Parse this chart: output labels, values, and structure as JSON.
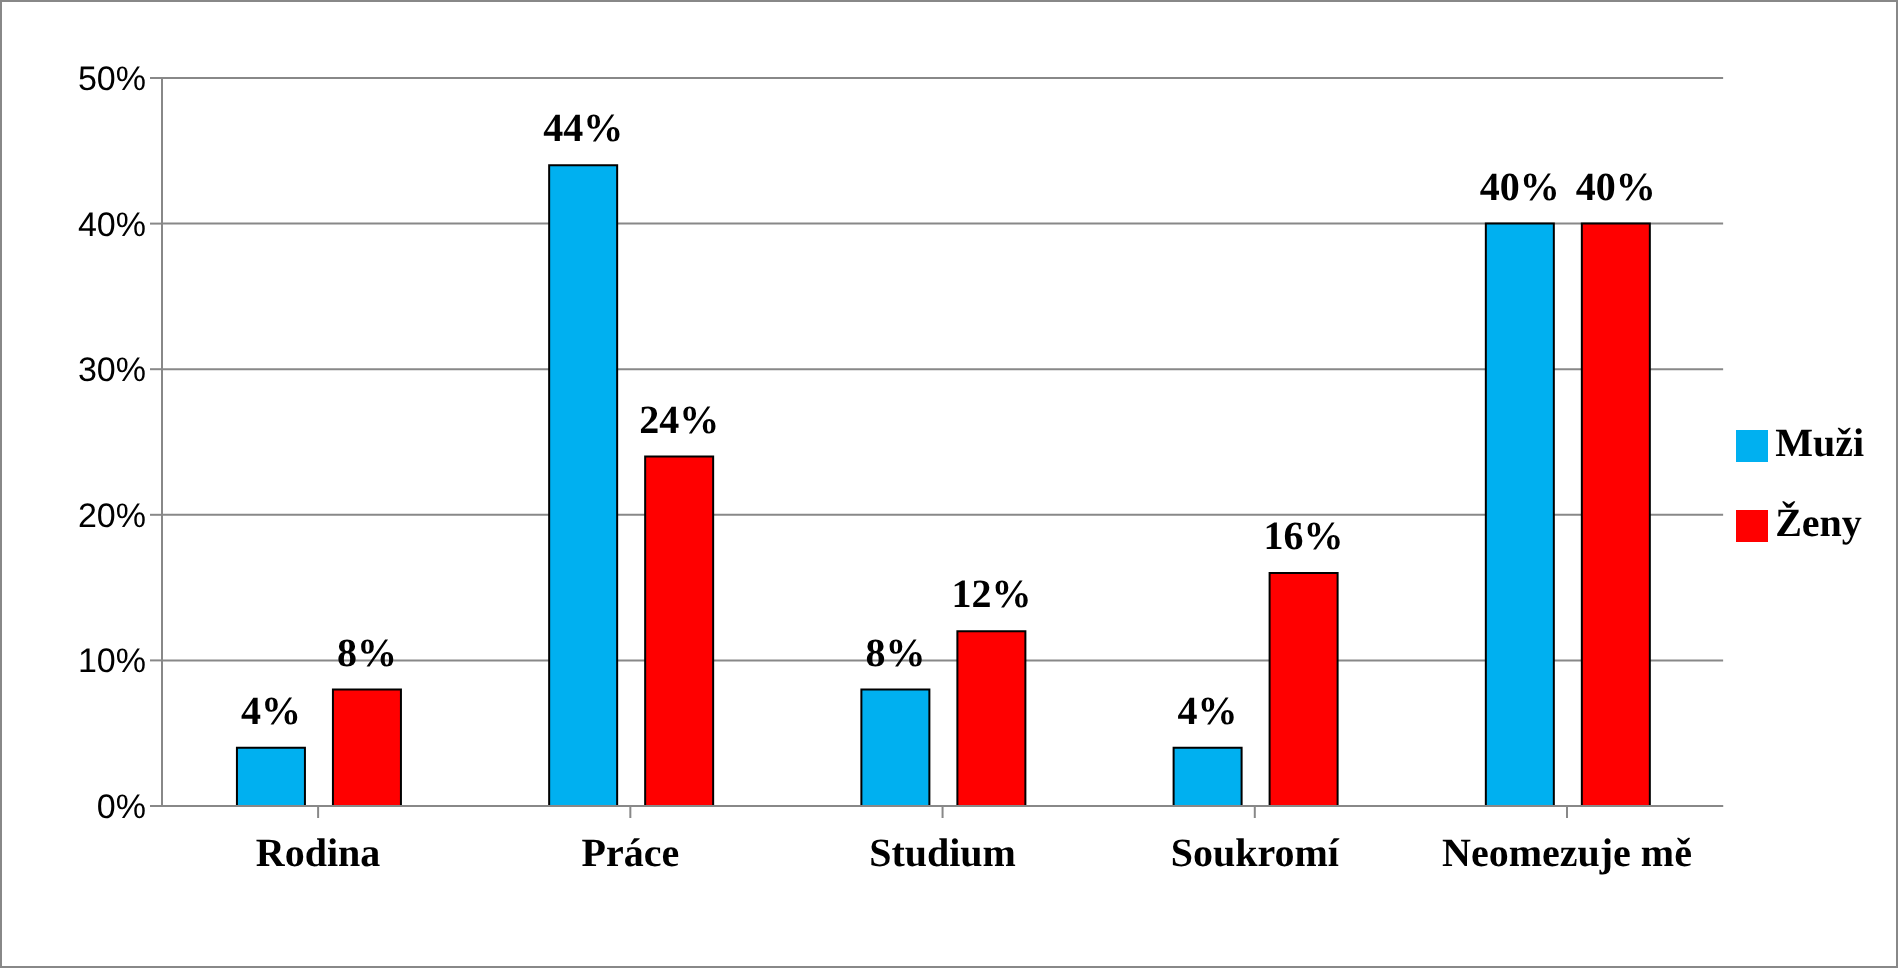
{
  "chart_data": {
    "type": "bar",
    "categories": [
      "Rodina",
      "Práce",
      "Studium",
      "Soukromí",
      "Neomezuje mě"
    ],
    "series": [
      {
        "name": "Muži",
        "color": "#00b0f0",
        "values": [
          4,
          44,
          8,
          4,
          40
        ],
        "value_labels": [
          "4%",
          "44%",
          "8%",
          "4%",
          "40%"
        ]
      },
      {
        "name": "Ženy",
        "color": "#ff0000",
        "values": [
          8,
          24,
          12,
          16,
          40
        ],
        "value_labels": [
          "8%",
          "24%",
          "12%",
          "16%",
          "40%"
        ]
      }
    ],
    "ylim": [
      0,
      50
    ],
    "yticks": [
      {
        "value": 0,
        "label": "0%"
      },
      {
        "value": 10,
        "label": "10%"
      },
      {
        "value": 20,
        "label": "20%"
      },
      {
        "value": 30,
        "label": "30%"
      },
      {
        "value": 40,
        "label": "40%"
      },
      {
        "value": 50,
        "label": "50%"
      }
    ],
    "grid": "y",
    "legend": "right"
  }
}
